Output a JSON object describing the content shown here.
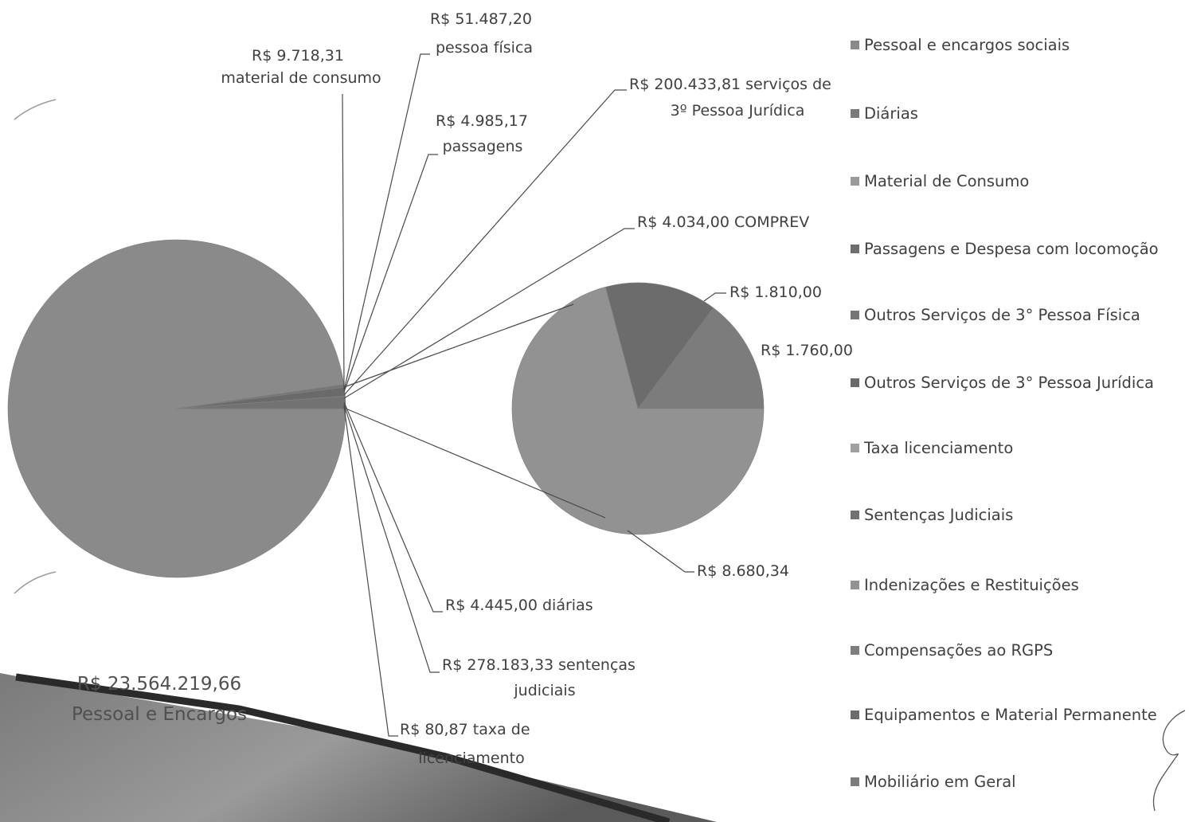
{
  "chart_data": {
    "type": "pie",
    "title": "",
    "main_pie": {
      "slices": [
        {
          "category": "Pessoal e encargos sociais",
          "value": 23564219.66,
          "label_lines": [
            "R$ 23.564.219,66",
            "Pessoal e Encargos"
          ]
        },
        {
          "category": "Material de Consumo",
          "value": 9718.31,
          "label_lines": [
            "R$ 9.718,31",
            "material de consumo"
          ]
        },
        {
          "category": "Outros Serviços de 3° Pessoa Física",
          "value": 51487.2,
          "label_lines": [
            "R$ 51.487,20",
            "pessoa física"
          ]
        },
        {
          "category": "Passagens e Despesa com locomoção",
          "value": 4985.17,
          "label_lines": [
            "R$ 4.985,17",
            "passagens"
          ]
        },
        {
          "category": "Outros Serviços de 3° Pessoa Jurídica",
          "value": 200433.81,
          "label_lines": [
            "R$ 200.433,81 serviços de",
            "3º Pessoa Jurídica"
          ]
        },
        {
          "category": "Compensações ao RGPS",
          "value": 4034.0,
          "label_lines": [
            "R$ 4.034,00 COMPREV"
          ]
        },
        {
          "category": "Diárias",
          "value": 4445.0,
          "label_lines": [
            "R$ 4.445,00 diárias"
          ]
        },
        {
          "category": "Sentenças Judiciais",
          "value": 278183.33,
          "label_lines": [
            "R$ 278.183,33 sentenças",
            "judiciais"
          ]
        },
        {
          "category": "Taxa licenciamento",
          "value": 80.87,
          "label_lines": [
            "R$ 80,87 taxa de",
            "licenciamento"
          ]
        }
      ]
    },
    "secondary_pie": {
      "slices": [
        {
          "category": "Mobiliário em Geral",
          "value": 1810.0,
          "label_lines": [
            "R$ 1.810,00"
          ]
        },
        {
          "category": "Equipamentos e Material Permanente",
          "value": 1760.0,
          "label_lines": [
            "R$ 1.760,00"
          ]
        },
        {
          "category": "Indenizações e Restituições",
          "value": 8680.34,
          "label_lines": [
            "R$ 8.680,34"
          ]
        }
      ]
    },
    "legend": {
      "placement": "right",
      "entries": [
        {
          "label": "Pessoal e encargos sociais",
          "color": "#8a8a8a"
        },
        {
          "label": "Diárias",
          "color": "#7a7a7a"
        },
        {
          "label": "Material de Consumo",
          "color": "#9a9a9a"
        },
        {
          "label": "Passagens e Despesa com locomoção",
          "color": "#6e6e6e"
        },
        {
          "label": "Outros Serviços de 3° Pessoa Física",
          "color": "#757575"
        },
        {
          "label": "Outros Serviços de 3° Pessoa Jurídica",
          "color": "#6a6a6a"
        },
        {
          "label": "Taxa licenciamento",
          "color": "#a0a0a0"
        },
        {
          "label": "Sentenças Judiciais",
          "color": "#727272"
        },
        {
          "label": "Indenizações e Restituições",
          "color": "#929292"
        },
        {
          "label": "Compensações ao RGPS",
          "color": "#7e7e7e"
        },
        {
          "label": "Equipamentos e Material Permanente",
          "color": "#6c6c6c"
        },
        {
          "label": "Mobiliário em Geral",
          "color": "#7c7c7c"
        }
      ]
    }
  }
}
